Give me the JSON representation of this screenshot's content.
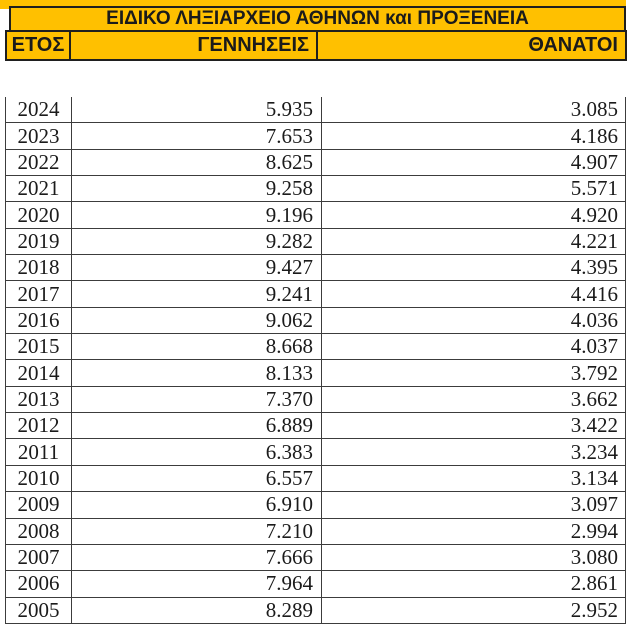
{
  "title": "ΕΙΔΙΚΟ ΛΗΞΙΑΡΧΕΙΟ ΑΘΗΝΩΝ και ΠΡΟΞΕΝΕΙΑ",
  "columns": {
    "year": "ΕΤΟΣ",
    "births": "ΓΕΝΝΗΣΕΙΣ",
    "deaths": "ΘΑΝΑΤΟΙ"
  },
  "colors": {
    "header_bg": "#FFC000",
    "header_border": "#1f1f1f",
    "grid_border": "#3c3c3c",
    "text": "#1b1b1b"
  },
  "rows": [
    {
      "year": "2024",
      "births": "5.935",
      "deaths": "3.085"
    },
    {
      "year": "2023",
      "births": "7.653",
      "deaths": "4.186"
    },
    {
      "year": "2022",
      "births": "8.625",
      "deaths": "4.907"
    },
    {
      "year": "2021",
      "births": "9.258",
      "deaths": "5.571"
    },
    {
      "year": "2020",
      "births": "9.196",
      "deaths": "4.920"
    },
    {
      "year": "2019",
      "births": "9.282",
      "deaths": "4.221"
    },
    {
      "year": "2018",
      "births": "9.427",
      "deaths": "4.395"
    },
    {
      "year": "2017",
      "births": "9.241",
      "deaths": "4.416"
    },
    {
      "year": "2016",
      "births": "9.062",
      "deaths": "4.036"
    },
    {
      "year": "2015",
      "births": "8.668",
      "deaths": "4.037"
    },
    {
      "year": "2014",
      "births": "8.133",
      "deaths": "3.792"
    },
    {
      "year": "2013",
      "births": "7.370",
      "deaths": "3.662"
    },
    {
      "year": "2012",
      "births": "6.889",
      "deaths": "3.422"
    },
    {
      "year": "2011",
      "births": "6.383",
      "deaths": "3.234"
    },
    {
      "year": "2010",
      "births": "6.557",
      "deaths": "3.134"
    },
    {
      "year": "2009",
      "births": "6.910",
      "deaths": "3.097"
    },
    {
      "year": "2008",
      "births": "7.210",
      "deaths": "2.994"
    },
    {
      "year": "2007",
      "births": "7.666",
      "deaths": "3.080"
    },
    {
      "year": "2006",
      "births": "7.964",
      "deaths": "2.861"
    },
    {
      "year": "2005",
      "births": "8.289",
      "deaths": "2.952"
    }
  ],
  "chart_data": {
    "type": "table",
    "title": "ΕΙΔΙΚΟ ΛΗΞΙΑΡΧΕΙΟ ΑΘΗΝΩΝ και ΠΡΟΞΕΝΕΙΑ",
    "columns": [
      "ΕΤΟΣ",
      "ΓΕΝΝΗΣΕΙΣ",
      "ΘΑΝΑΤΟΙ"
    ],
    "categories": [
      2024,
      2023,
      2022,
      2021,
      2020,
      2019,
      2018,
      2017,
      2016,
      2015,
      2014,
      2013,
      2012,
      2011,
      2010,
      2009,
      2008,
      2007,
      2006,
      2005
    ],
    "series": [
      {
        "name": "ΓΕΝΝΗΣΕΙΣ",
        "values": [
          5935,
          7653,
          8625,
          9258,
          9196,
          9282,
          9427,
          9241,
          9062,
          8668,
          8133,
          7370,
          6889,
          6383,
          6557,
          6910,
          7210,
          7666,
          7964,
          8289
        ]
      },
      {
        "name": "ΘΑΝΑΤΟΙ",
        "values": [
          3085,
          4186,
          4907,
          5571,
          4920,
          4221,
          4395,
          4416,
          4036,
          4037,
          3792,
          3662,
          3422,
          3234,
          3134,
          3097,
          2994,
          3080,
          2861,
          2952
        ]
      }
    ],
    "number_format": "thousands separated by dot (Greek locale)"
  }
}
